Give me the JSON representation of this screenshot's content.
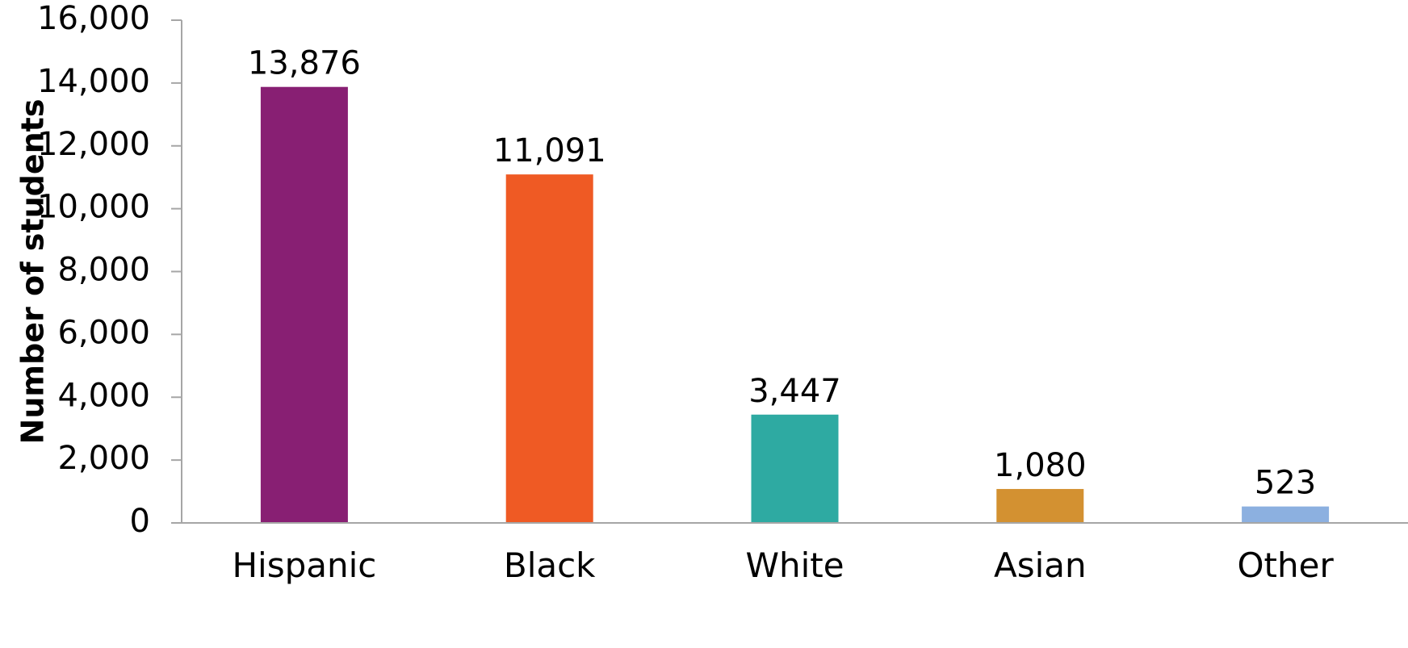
{
  "chart_data": {
    "type": "bar",
    "title": "",
    "xlabel": "",
    "ylabel": "Number of students",
    "categories": [
      "Hispanic",
      "Black",
      "White",
      "Asian",
      "Other"
    ],
    "values": [
      13876,
      11091,
      3447,
      1080,
      523
    ],
    "value_labels": [
      "13,876",
      "11,091",
      "3,447",
      "1,080",
      "523"
    ],
    "colors": [
      "#881f73",
      "#ef5a24",
      "#2eaaa2",
      "#d39131",
      "#8cb0e0"
    ],
    "ylim": [
      0,
      16000
    ],
    "yticks": [
      0,
      2000,
      4000,
      6000,
      8000,
      10000,
      12000,
      14000,
      16000
    ],
    "ytick_labels": [
      "0",
      "2,000",
      "4,000",
      "6,000",
      "8,000",
      "10,000",
      "12,000",
      "14,000",
      "16,000"
    ],
    "grid": false,
    "legend": "none"
  }
}
